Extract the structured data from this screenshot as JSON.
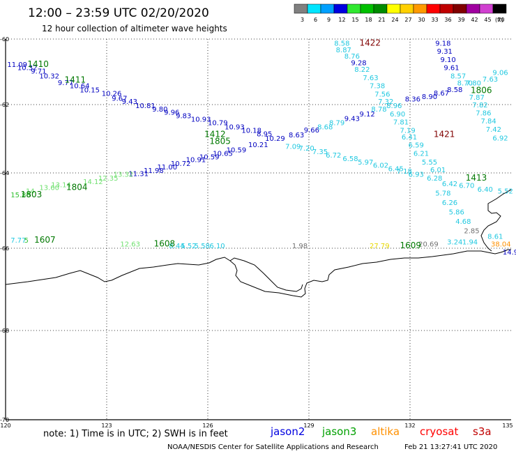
{
  "header": {
    "title": "12:00 – 23:59 UTC 02/20/2020",
    "subtitle": "12 hour collection of altimeter wave heights"
  },
  "legend": {
    "unit": "(ft)",
    "bins": [
      {
        "label": "3",
        "color": "#808080"
      },
      {
        "label": "6",
        "color": "#00e5ff"
      },
      {
        "label": "9",
        "color": "#00a0ff"
      },
      {
        "label": "12",
        "color": "#0000e0"
      },
      {
        "label": "15",
        "color": "#30e830"
      },
      {
        "label": "18",
        "color": "#00c000"
      },
      {
        "label": "21",
        "color": "#008c00"
      },
      {
        "label": "24",
        "color": "#ffff00"
      },
      {
        "label": "27",
        "color": "#ffd000"
      },
      {
        "label": "30",
        "color": "#ff9a00"
      },
      {
        "label": "33",
        "color": "#ff0000"
      },
      {
        "label": "36",
        "color": "#c00000"
      },
      {
        "label": "39",
        "color": "#800000"
      },
      {
        "label": "42",
        "color": "#a000a0"
      },
      {
        "label": "45",
        "color": "#d040d0"
      },
      {
        "label": "70",
        "color": "#000000"
      }
    ]
  },
  "map": {
    "lat_ticks": [
      "-60",
      "-62",
      "-64",
      "-66",
      "-68",
      "-70"
    ],
    "lon_ticks": [
      "120",
      "123",
      "126",
      "129",
      "132",
      "135"
    ],
    "colors": {
      "gray": "#707070",
      "cyan": "#20c8e0",
      "blue": "#0000c0",
      "green": "#00a000",
      "darkgreen": "#007800",
      "lightgreen": "#70e070",
      "yellow": "#e8d800",
      "orange": "#ff9000",
      "darkred": "#800000"
    },
    "pass_labels": [
      {
        "text": "1410",
        "color": "#007800",
        "lon": 120.65,
        "lat": -60.85
      },
      {
        "text": "1411",
        "color": "#007800",
        "lon": 121.75,
        "lat": -61.33
      },
      {
        "text": "1422",
        "color": "#800000",
        "lon": 130.5,
        "lat": -60.2
      },
      {
        "text": "1412",
        "color": "#007800",
        "lon": 125.9,
        "lat": -62.95
      },
      {
        "text": "1805",
        "color": "#007800",
        "lon": 126.05,
        "lat": -63.15
      },
      {
        "text": "1806",
        "color": "#007800",
        "lon": 133.8,
        "lat": -61.65
      },
      {
        "text": "1421",
        "color": "#800000",
        "lon": 132.7,
        "lat": -62.95
      },
      {
        "text": "1413",
        "color": "#007800",
        "lon": 133.65,
        "lat": -64.2
      },
      {
        "text": "1804",
        "color": "#007800",
        "lon": 121.8,
        "lat": -64.45
      },
      {
        "text": "1803",
        "color": "#007800",
        "lon": 120.45,
        "lat": -64.65
      },
      {
        "text": "1607",
        "color": "#007800",
        "lon": 120.85,
        "lat": -65.85
      },
      {
        "text": "1608",
        "color": "#007800",
        "lon": 124.4,
        "lat": -65.95
      },
      {
        "text": "1609",
        "color": "#007800",
        "lon": 131.7,
        "lat": -66.0
      }
    ],
    "wave_labels": [
      {
        "text": "11.09",
        "color": "#0000c0",
        "lon": 120.05,
        "lat": -60.85
      },
      {
        "text": "10.32",
        "color": "#0000c0",
        "lon": 120.35,
        "lat": -60.95
      },
      {
        "text": "9.71",
        "color": "#0000c0",
        "lon": 120.75,
        "lat": -61.05
      },
      {
        "text": "10.32",
        "color": "#0000c0",
        "lon": 121.0,
        "lat": -61.2
      },
      {
        "text": "9.77",
        "color": "#0000c0",
        "lon": 121.55,
        "lat": -61.4
      },
      {
        "text": "10.64",
        "color": "#0000c0",
        "lon": 121.9,
        "lat": -61.5
      },
      {
        "text": "10.15",
        "color": "#0000c0",
        "lon": 122.2,
        "lat": -61.63
      },
      {
        "text": "10.26",
        "color": "#0000c0",
        "lon": 122.85,
        "lat": -61.73
      },
      {
        "text": "9.67",
        "color": "#0000c0",
        "lon": 123.15,
        "lat": -61.88
      },
      {
        "text": "9.43",
        "color": "#0000c0",
        "lon": 123.45,
        "lat": -61.98
      },
      {
        "text": "10.81",
        "color": "#0000c0",
        "lon": 123.85,
        "lat": -62.1
      },
      {
        "text": "9.80",
        "color": "#0000c0",
        "lon": 124.35,
        "lat": -62.2
      },
      {
        "text": "9.96",
        "color": "#0000c0",
        "lon": 124.7,
        "lat": -62.3
      },
      {
        "text": "9.83",
        "color": "#0000c0",
        "lon": 125.05,
        "lat": -62.4
      },
      {
        "text": "10.93",
        "color": "#0000c0",
        "lon": 125.5,
        "lat": -62.5
      },
      {
        "text": "10.79",
        "color": "#0000c0",
        "lon": 126.0,
        "lat": -62.6
      },
      {
        "text": "10.93",
        "color": "#0000c0",
        "lon": 126.5,
        "lat": -62.72
      },
      {
        "text": "10.18",
        "color": "#0000c0",
        "lon": 127.0,
        "lat": -62.83
      },
      {
        "text": "8.95",
        "color": "#0000c0",
        "lon": 127.45,
        "lat": -62.93
      },
      {
        "text": "10.29",
        "color": "#0000c0",
        "lon": 127.7,
        "lat": -63.06
      },
      {
        "text": "8.58",
        "color": "#20c8e0",
        "lon": 129.75,
        "lat": -60.2
      },
      {
        "text": "8.87",
        "color": "#20c8e0",
        "lon": 129.8,
        "lat": -60.4
      },
      {
        "text": "8.76",
        "color": "#20c8e0",
        "lon": 130.05,
        "lat": -60.6
      },
      {
        "text": "9.28",
        "color": "#0000c0",
        "lon": 130.25,
        "lat": -60.8
      },
      {
        "text": "8.22",
        "color": "#20c8e0",
        "lon": 130.35,
        "lat": -61.0
      },
      {
        "text": "7.63",
        "color": "#20c8e0",
        "lon": 130.6,
        "lat": -61.25
      },
      {
        "text": "7.38",
        "color": "#20c8e0",
        "lon": 130.8,
        "lat": -61.5
      },
      {
        "text": "7.56",
        "color": "#20c8e0",
        "lon": 130.95,
        "lat": -61.75
      },
      {
        "text": "7.32",
        "color": "#20c8e0",
        "lon": 131.05,
        "lat": -61.98
      },
      {
        "text": "8.96",
        "color": "#20c8e0",
        "lon": 131.3,
        "lat": -62.1
      },
      {
        "text": "6.90",
        "color": "#20c8e0",
        "lon": 131.4,
        "lat": -62.35
      },
      {
        "text": "7.81",
        "color": "#20c8e0",
        "lon": 131.5,
        "lat": -62.58
      },
      {
        "text": "7.19",
        "color": "#20c8e0",
        "lon": 131.7,
        "lat": -62.83
      },
      {
        "text": "6.41",
        "color": "#20c8e0",
        "lon": 131.75,
        "lat": -63.02
      },
      {
        "text": "6.59",
        "color": "#20c8e0",
        "lon": 131.95,
        "lat": -63.25
      },
      {
        "text": "6.21",
        "color": "#20c8e0",
        "lon": 132.1,
        "lat": -63.5
      },
      {
        "text": "5.55",
        "color": "#20c8e0",
        "lon": 132.35,
        "lat": -63.75
      },
      {
        "text": "6.01",
        "color": "#20c8e0",
        "lon": 132.6,
        "lat": -63.98
      },
      {
        "text": "6.28",
        "color": "#20c8e0",
        "lon": 132.5,
        "lat": -64.2
      },
      {
        "text": "6.42",
        "color": "#20c8e0",
        "lon": 132.95,
        "lat": -64.35
      },
      {
        "text": "5.78",
        "color": "#20c8e0",
        "lon": 132.75,
        "lat": -64.6
      },
      {
        "text": "6.26",
        "color": "#20c8e0",
        "lon": 132.95,
        "lat": -64.85
      },
      {
        "text": "5.86",
        "color": "#20c8e0",
        "lon": 133.15,
        "lat": -65.1
      },
      {
        "text": "4.68",
        "color": "#20c8e0",
        "lon": 133.35,
        "lat": -65.35
      },
      {
        "text": "9.18",
        "color": "#0000c0",
        "lon": 132.75,
        "lat": -60.2
      },
      {
        "text": "9.31",
        "color": "#0000c0",
        "lon": 132.8,
        "lat": -60.45
      },
      {
        "text": "9.10",
        "color": "#0000c0",
        "lon": 132.9,
        "lat": -60.7
      },
      {
        "text": "9.61",
        "color": "#0000c0",
        "lon": 133.0,
        "lat": -60.95
      },
      {
        "text": "8.57",
        "color": "#20c8e0",
        "lon": 133.2,
        "lat": -61.2
      },
      {
        "text": "8.70",
        "color": "#20c8e0",
        "lon": 133.4,
        "lat": -61.42
      },
      {
        "text": "7.80",
        "color": "#20c8e0",
        "lon": 133.65,
        "lat": -61.42
      },
      {
        "text": "7.63",
        "color": "#20c8e0",
        "lon": 134.15,
        "lat": -61.3
      },
      {
        "text": "9.06",
        "color": "#20c8e0",
        "lon": 134.45,
        "lat": -61.1
      },
      {
        "text": "7.87",
        "color": "#20c8e0",
        "lon": 133.75,
        "lat": -61.85
      },
      {
        "text": "7.82",
        "color": "#20c8e0",
        "lon": 133.85,
        "lat": -62.08
      },
      {
        "text": "7.86",
        "color": "#20c8e0",
        "lon": 133.95,
        "lat": -62.32
      },
      {
        "text": "7.84",
        "color": "#20c8e0",
        "lon": 134.1,
        "lat": -62.55
      },
      {
        "text": "7.42",
        "color": "#20c8e0",
        "lon": 134.25,
        "lat": -62.8
      },
      {
        "text": "6.92",
        "color": "#20c8e0",
        "lon": 134.45,
        "lat": -63.05
      },
      {
        "text": "8.36",
        "color": "#0000c0",
        "lon": 131.85,
        "lat": -61.9
      },
      {
        "text": "8.90",
        "color": "#0000c0",
        "lon": 132.35,
        "lat": -61.83
      },
      {
        "text": "8.67",
        "color": "#0000c0",
        "lon": 132.7,
        "lat": -61.72
      },
      {
        "text": "8.58",
        "color": "#0000c0",
        "lon": 133.1,
        "lat": -61.62
      },
      {
        "text": "9.12",
        "color": "#0000c0",
        "lon": 130.5,
        "lat": -62.35
      },
      {
        "text": "8.78",
        "color": "#20c8e0",
        "lon": 130.85,
        "lat": -62.2
      },
      {
        "text": "9.43",
        "color": "#0000c0",
        "lon": 130.05,
        "lat": -62.48
      },
      {
        "text": "8.79",
        "color": "#20c8e0",
        "lon": 129.6,
        "lat": -62.6
      },
      {
        "text": "8.68",
        "color": "#20c8e0",
        "lon": 129.25,
        "lat": -62.72
      },
      {
        "text": "9.66",
        "color": "#0000c0",
        "lon": 128.85,
        "lat": -62.82
      },
      {
        "text": "8.63",
        "color": "#0000c0",
        "lon": 128.4,
        "lat": -62.96
      },
      {
        "text": "10.21",
        "color": "#0000c0",
        "lon": 127.2,
        "lat": -63.24
      },
      {
        "text": "10.59",
        "color": "#0000c0",
        "lon": 126.55,
        "lat": -63.4
      },
      {
        "text": "10.65",
        "color": "#0000c0",
        "lon": 126.15,
        "lat": -63.5
      },
      {
        "text": "10.59",
        "color": "#0000c0",
        "lon": 125.75,
        "lat": -63.6
      },
      {
        "text": "10.91",
        "color": "#0000c0",
        "lon": 125.35,
        "lat": -63.68
      },
      {
        "text": "10.72",
        "color": "#0000c0",
        "lon": 124.9,
        "lat": -63.8
      },
      {
        "text": "11.00",
        "color": "#0000c0",
        "lon": 124.5,
        "lat": -63.9
      },
      {
        "text": "11.98",
        "color": "#0000c0",
        "lon": 124.1,
        "lat": -64.0
      },
      {
        "text": "11.31",
        "color": "#0000c0",
        "lon": 123.65,
        "lat": -64.08
      },
      {
        "text": "7.09",
        "color": "#20c8e0",
        "lon": 128.3,
        "lat": -63.3
      },
      {
        "text": "7.20",
        "color": "#20c8e0",
        "lon": 128.7,
        "lat": -63.35
      },
      {
        "text": "7.35",
        "color": "#20c8e0",
        "lon": 129.1,
        "lat": -63.45
      },
      {
        "text": "6.72",
        "color": "#20c8e0",
        "lon": 129.5,
        "lat": -63.55
      },
      {
        "text": "6.58",
        "color": "#20c8e0",
        "lon": 130.0,
        "lat": -63.65
      },
      {
        "text": "5.97",
        "color": "#20c8e0",
        "lon": 130.45,
        "lat": -63.75
      },
      {
        "text": "6.02",
        "color": "#20c8e0",
        "lon": 130.9,
        "lat": -63.85
      },
      {
        "text": "6.45",
        "color": "#20c8e0",
        "lon": 131.35,
        "lat": -63.95
      },
      {
        "text": "7.18",
        "color": "#20c8e0",
        "lon": 131.6,
        "lat": -64.02
      },
      {
        "text": "6.93",
        "color": "#20c8e0",
        "lon": 131.95,
        "lat": -64.1
      },
      {
        "text": "6.70",
        "color": "#20c8e0",
        "lon": 133.45,
        "lat": -64.4
      },
      {
        "text": "6.40",
        "color": "#20c8e0",
        "lon": 134.0,
        "lat": -64.5
      },
      {
        "text": "5.52",
        "color": "#20c8e0",
        "lon": 134.6,
        "lat": -64.55
      },
      {
        "text": "15.86",
        "color": "#30c030",
        "lon": 120.15,
        "lat": -64.65
      },
      {
        "text": "14",
        "color": "#70e070",
        "lon": 120.6,
        "lat": -64.55
      },
      {
        "text": "13.60",
        "color": "#70e070",
        "lon": 121.0,
        "lat": -64.45
      },
      {
        "text": "13.14",
        "color": "#70e070",
        "lon": 121.35,
        "lat": -64.38
      },
      {
        "text": "14.12",
        "color": "#70e070",
        "lon": 122.3,
        "lat": -64.3
      },
      {
        "text": "12.35",
        "color": "#70e070",
        "lon": 122.75,
        "lat": -64.2
      },
      {
        "text": "13.32",
        "color": "#70e070",
        "lon": 123.2,
        "lat": -64.1
      },
      {
        "text": "7.77",
        "color": "#20c8e0",
        "lon": 120.15,
        "lat": -65.85
      },
      {
        "text": "5",
        "color": "#30c030",
        "lon": 120.55,
        "lat": -65.85
      },
      {
        "text": "12.63",
        "color": "#70e070",
        "lon": 123.4,
        "lat": -65.95
      },
      {
        "text": "8.44",
        "color": "#20c8e0",
        "lon": 124.85,
        "lat": -66.0
      },
      {
        "text": "5.52",
        "color": "#20c8e0",
        "lon": 125.2,
        "lat": -66.0
      },
      {
        "text": "5.58",
        "color": "#20c8e0",
        "lon": 125.6,
        "lat": -66.0
      },
      {
        "text": "6.10",
        "color": "#20c8e0",
        "lon": 126.05,
        "lat": -66.0
      },
      {
        "text": "1.98",
        "color": "#707070",
        "lon": 128.5,
        "lat": -66.0
      },
      {
        "text": "27.79",
        "color": "#e8d800",
        "lon": 130.8,
        "lat": -66.0
      },
      {
        "text": "20.69",
        "color": "#707070",
        "lon": 132.25,
        "lat": -65.95
      },
      {
        "text": "3.24",
        "color": "#20c8e0",
        "lon": 133.1,
        "lat": -65.9
      },
      {
        "text": "1.94",
        "color": "#20c8e0",
        "lon": 133.55,
        "lat": -65.9
      },
      {
        "text": "2.85",
        "color": "#707070",
        "lon": 133.6,
        "lat": -65.6
      },
      {
        "text": "8.61",
        "color": "#20c8e0",
        "lon": 134.3,
        "lat": -65.75
      },
      {
        "text": "38.04",
        "color": "#ff9000",
        "lon": 134.4,
        "lat": -65.95
      },
      {
        "text": "14.9",
        "color": "#0000c0",
        "lon": 134.75,
        "lat": -66.15
      }
    ]
  },
  "footer": {
    "note": "note:  1)  Time is in UTC;  2)  SWH is in feet",
    "sats": [
      {
        "text": "jason2",
        "color": "#0000e0"
      },
      {
        "text": "jason3",
        "color": "#00a000"
      },
      {
        "text": "altika",
        "color": "#ff9000"
      },
      {
        "text": "cryosat",
        "color": "#ff0000"
      },
      {
        "text": "s3a",
        "color": "#c00000"
      }
    ],
    "credit": "NOAA/NESDIS Center for Satellite Applications and Research",
    "timestamp": "Feb 21 13:27:41 UTC 2020"
  }
}
